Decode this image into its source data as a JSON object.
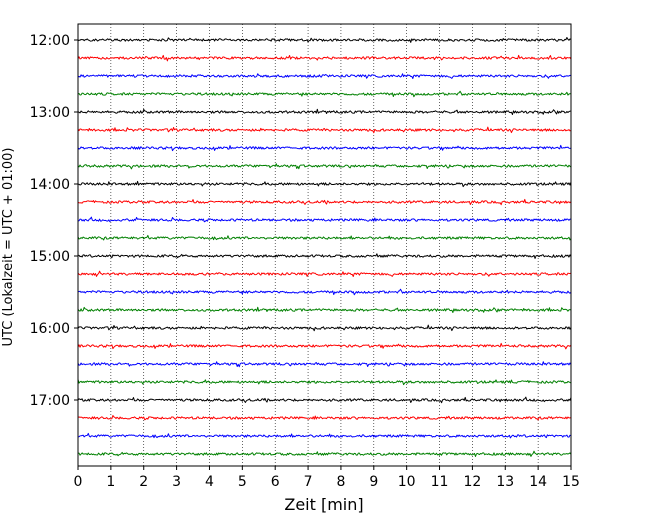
{
  "chart_data": {
    "type": "line",
    "title": "",
    "xlabel": "Zeit  [min]",
    "ylabel": "UTC (Lokalzeit = UTC + 01:00)",
    "xlim": [
      0,
      15
    ],
    "x_ticks": [
      "0",
      "1",
      "2",
      "3",
      "4",
      "5",
      "6",
      "7",
      "8",
      "9",
      "10",
      "11",
      "12",
      "13",
      "14",
      "15"
    ],
    "y_tick_labels": [
      "12:00",
      "13:00",
      "14:00",
      "15:00",
      "16:00",
      "17:00"
    ],
    "trace_start_times": [
      "12:00",
      "12:15",
      "12:30",
      "12:45",
      "13:00",
      "13:15",
      "13:30",
      "13:45",
      "14:00",
      "14:15",
      "14:30",
      "14:45",
      "15:00",
      "15:15",
      "15:30",
      "15:45",
      "16:00",
      "16:15",
      "16:30",
      "16:45",
      "17:00",
      "17:15",
      "17:30",
      "17:45"
    ],
    "trace_duration_min": 15,
    "trace_colors": [
      "#000000",
      "#ff0000",
      "#0000ff",
      "#008000"
    ],
    "grid": "x-dotted",
    "legend": "none"
  }
}
